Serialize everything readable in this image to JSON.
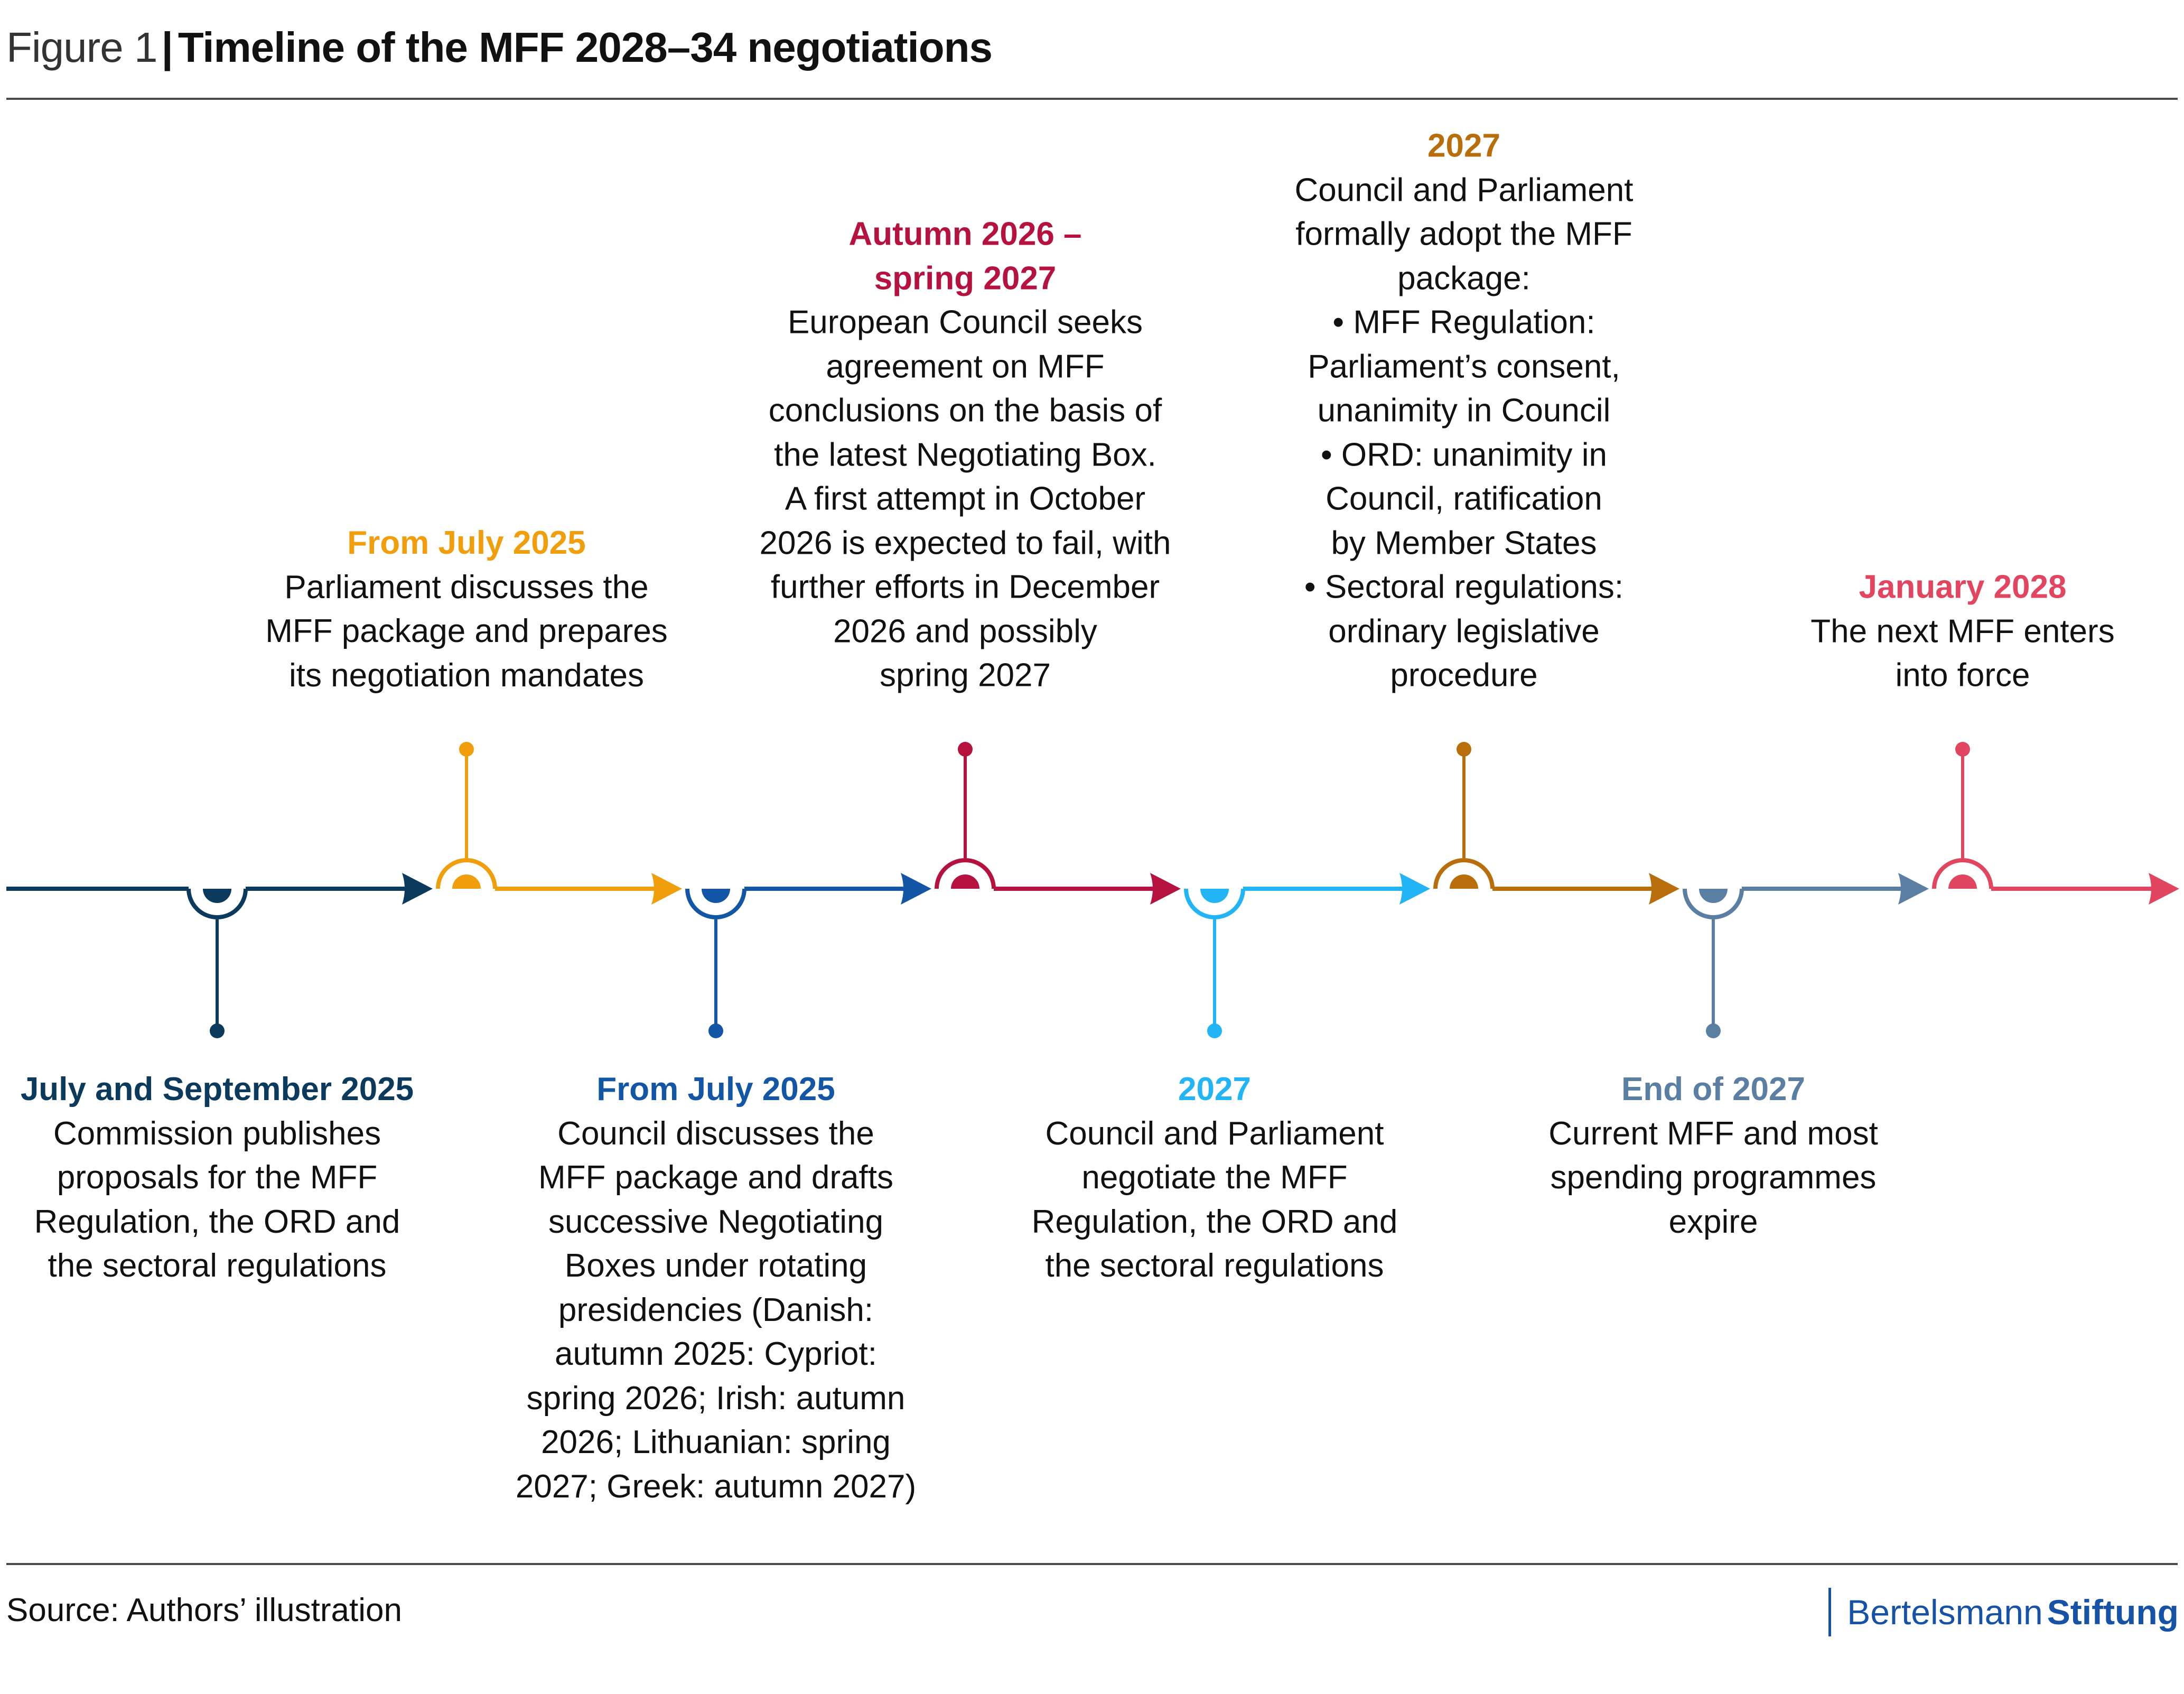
{
  "header": {
    "figure_label": "Figure 1",
    "separator": "|",
    "title": "Timeline of the MFF 2028–34 negotiations"
  },
  "timeline": {
    "direction": "left-to-right",
    "events": [
      {
        "id": "e1",
        "position": "below",
        "color": "#0b3a5c",
        "date": "July and September 2025",
        "description": "Commission publishes\nproposals for the MFF\nRegulation, the ORD and\nthe sectoral regulations"
      },
      {
        "id": "e2",
        "position": "above",
        "color": "#f09e0b",
        "date": "From July 2025",
        "description": "Parliament discusses the\nMFF package and prepares\nits negotiation mandates"
      },
      {
        "id": "e3",
        "position": "below",
        "color": "#1356a6",
        "date": "From July 2025",
        "description": "Council discusses the\nMFF package and drafts\nsuccessive Negotiating\nBoxes under rotating\npresidencies (Danish:\nautumn 2025: Cypriot:\nspring 2026; Irish: autumn\n2026; Lithuanian: spring\n2027; Greek: autumn 2027)"
      },
      {
        "id": "e4",
        "position": "above",
        "color": "#b5123f",
        "date": "Autumn 2026 –\nspring 2027",
        "description": "European Council seeks\nagreement on MFF\nconclusions on the basis of\nthe latest Negotiating Box.\nA first attempt in October\n2026 is expected to fail, with\nfurther efforts in December\n2026 and possibly\nspring 2027"
      },
      {
        "id": "e5",
        "position": "below",
        "color": "#22b4f5",
        "date": "2027",
        "description": "Council and Parliament\nnegotiate the MFF\nRegulation, the ORD and\nthe sectoral regulations"
      },
      {
        "id": "e6",
        "position": "above",
        "color": "#b86e0a",
        "date": "2027",
        "description": "Council and Parliament\nformally adopt the MFF\npackage:\n• MFF Regulation:\nParliament’s consent,\nunanimity in Council\n• ORD: unanimity in\nCouncil, ratification\nby Member States\n• Sectoral regulations:\nordinary legislative\nprocedure"
      },
      {
        "id": "e7",
        "position": "below",
        "color": "#5a7fa3",
        "date": "End of 2027",
        "description": "Current MFF and most\nspending programmes\nexpire"
      },
      {
        "id": "e8",
        "position": "above",
        "color": "#e2455f",
        "date": "January 2028",
        "description": "The next MFF enters\ninto force"
      }
    ]
  },
  "footer": {
    "source": "Source: Authors’ illustration",
    "logo_part1": "Bertelsmann",
    "logo_part2": "Stiftung",
    "logo_color": "#1652a6"
  }
}
